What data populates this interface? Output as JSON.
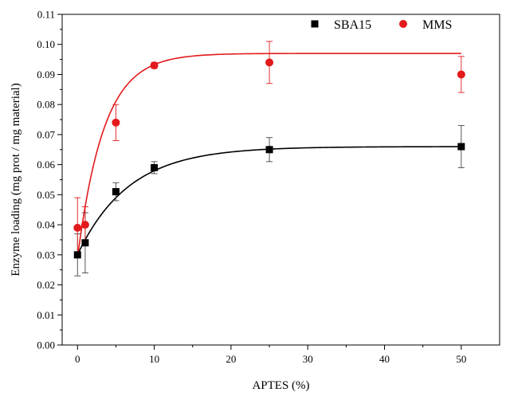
{
  "chart_data": {
    "type": "scatter",
    "xlabel": "APTES (%)",
    "ylabel": "Enzyme loading (mg prot / mg material)",
    "xlim": [
      -2,
      55
    ],
    "ylim": [
      0,
      0.11
    ],
    "xticks": [
      0,
      10,
      20,
      30,
      40,
      50
    ],
    "yticks": [
      0.0,
      0.01,
      0.02,
      0.03,
      0.04,
      0.05,
      0.06,
      0.07,
      0.08,
      0.09,
      0.1,
      0.11
    ],
    "xtick_labels": [
      "0",
      "10",
      "20",
      "30",
      "40",
      "50"
    ],
    "ytick_labels": [
      "0.00",
      "0.01",
      "0.02",
      "0.03",
      "0.04",
      "0.05",
      "0.06",
      "0.07",
      "0.08",
      "0.09",
      "0.10",
      "0.11"
    ],
    "grid": false,
    "legend": {
      "position": "top-right"
    },
    "series": [
      {
        "name": "SBA15",
        "marker": "square",
        "color": "#000000",
        "x": [
          0,
          1,
          5,
          10,
          25,
          50
        ],
        "y": [
          0.03,
          0.034,
          0.051,
          0.059,
          0.065,
          0.066
        ],
        "yerr": [
          0.007,
          0.01,
          0.003,
          0.002,
          0.004,
          0.007
        ],
        "fit": {
          "type": "exponential",
          "y0": 0.03,
          "plateau": 0.066,
          "k": 0.15
        }
      },
      {
        "name": "MMS",
        "marker": "circle",
        "color": "#e31a1c",
        "x": [
          0,
          1,
          5,
          10,
          25,
          50
        ],
        "y": [
          0.039,
          0.04,
          0.074,
          0.093,
          0.094,
          0.09
        ],
        "yerr": [
          0.01,
          0.006,
          0.006,
          0.001,
          0.007,
          0.006
        ],
        "fit": {
          "type": "exponential",
          "y0": 0.029,
          "plateau": 0.097,
          "k": 0.29
        }
      }
    ]
  }
}
